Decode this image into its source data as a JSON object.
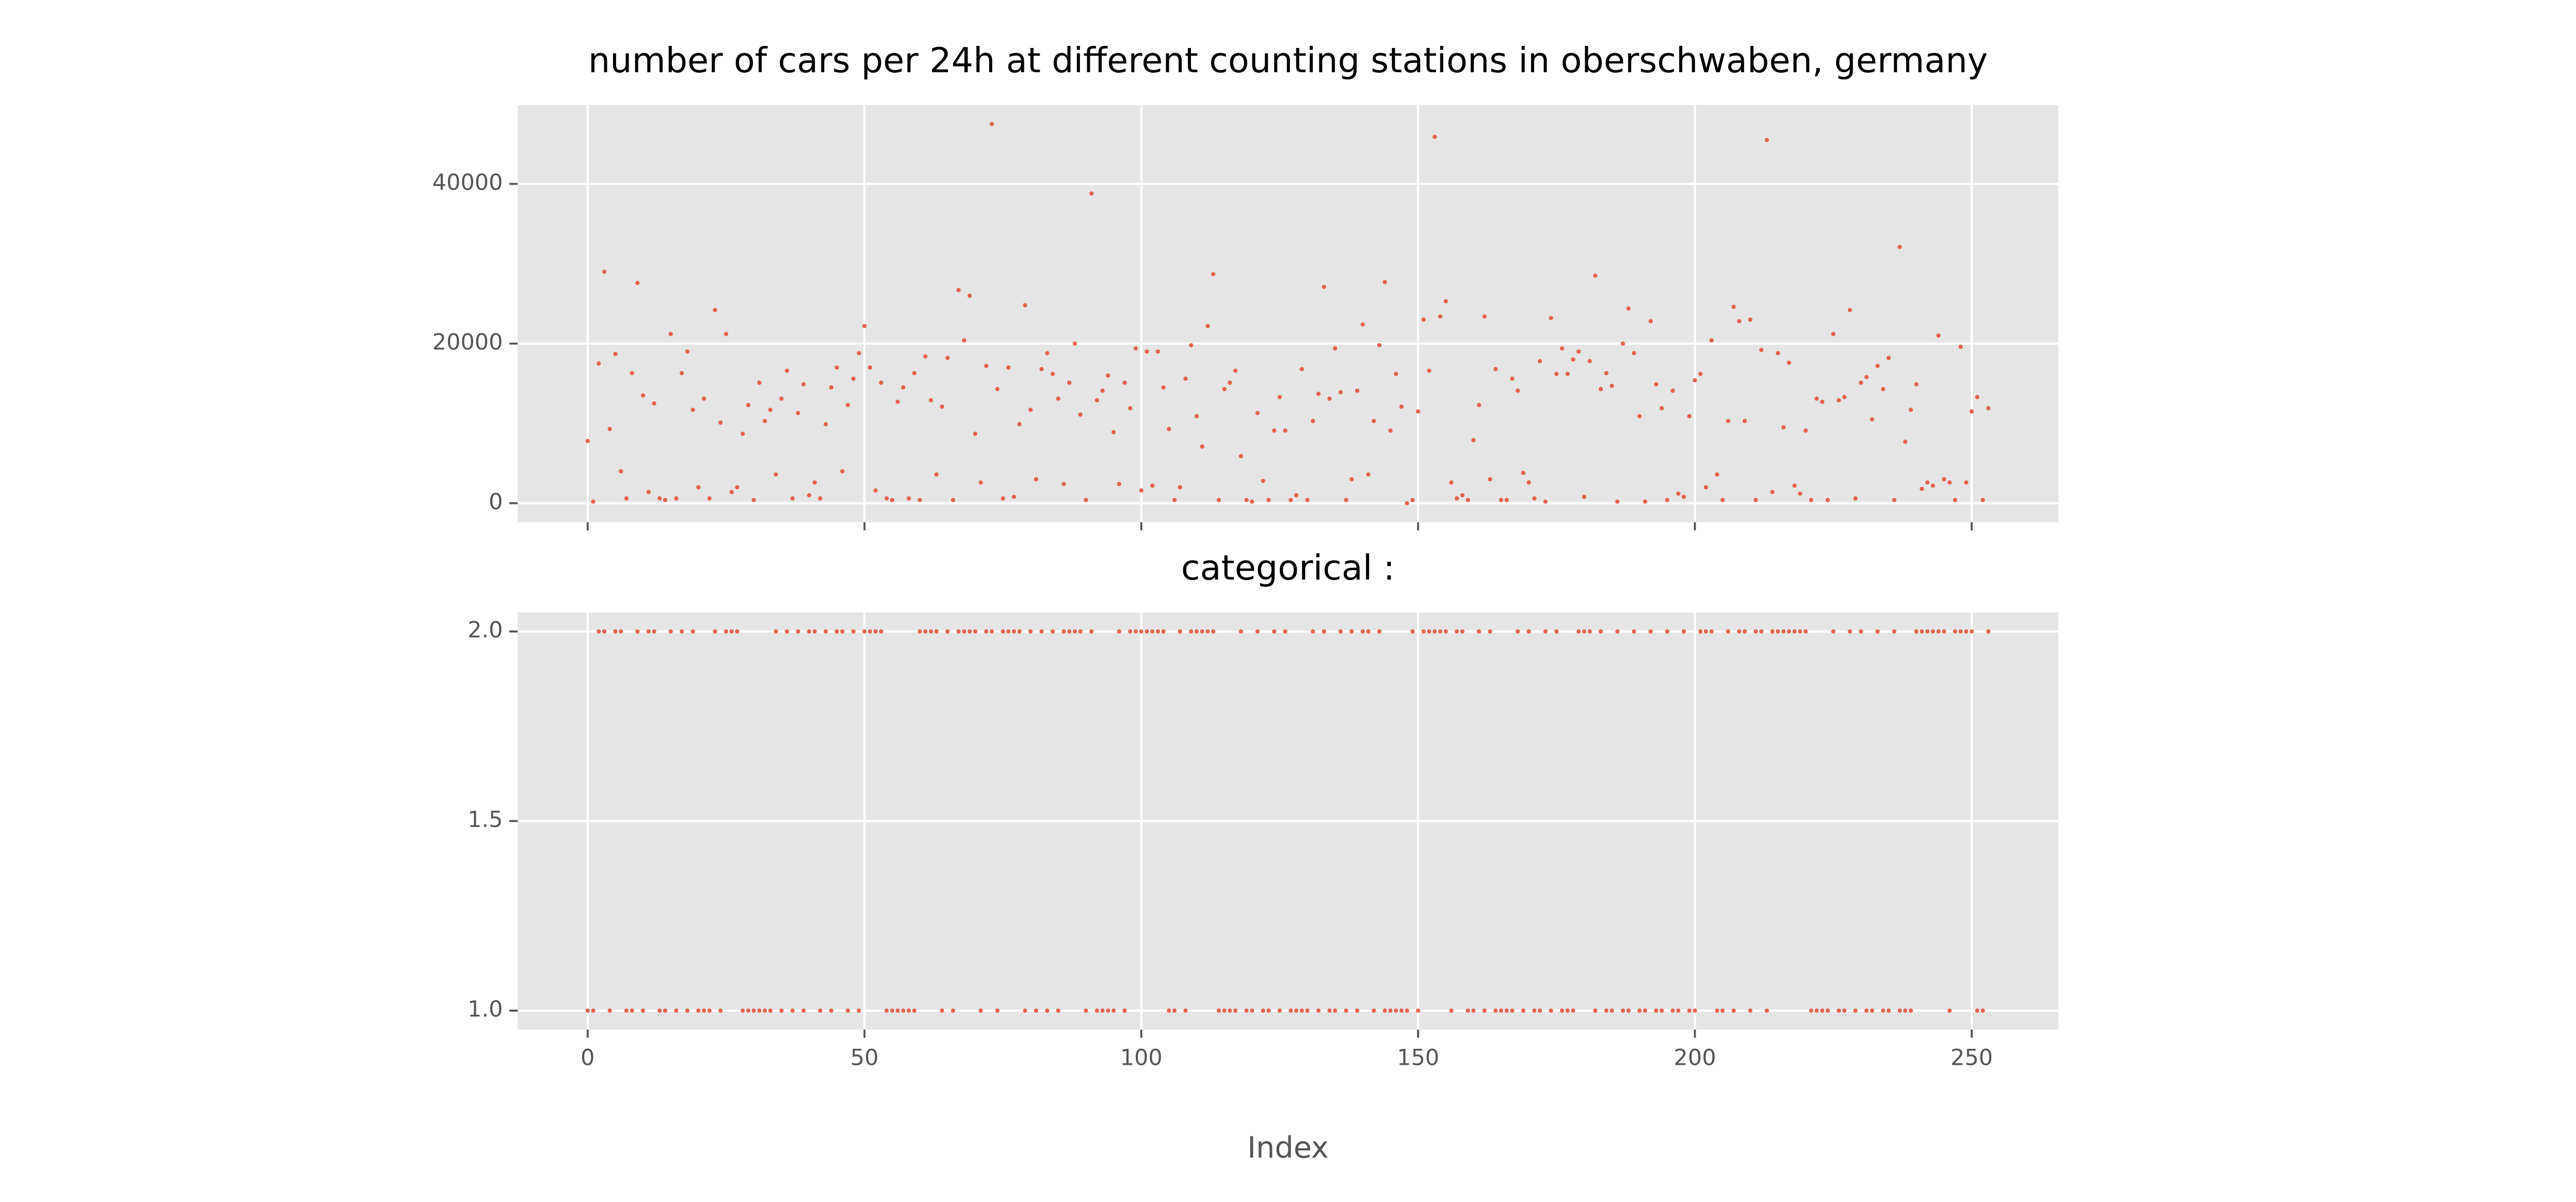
{
  "chart_data": [
    {
      "type": "scatter",
      "title": "number of cars per 24h at different counting stations in oberschwaben, germany",
      "x": [
        0,
        1,
        2,
        3,
        4,
        5,
        6,
        7,
        8,
        9,
        10,
        11,
        12,
        13,
        14,
        15,
        16,
        17,
        18,
        19,
        20,
        21,
        22,
        23,
        24,
        25,
        26,
        27,
        28,
        29,
        30,
        31,
        32,
        33,
        34,
        35,
        36,
        37,
        38,
        39,
        40,
        41,
        42,
        43,
        44,
        45,
        46,
        47,
        48,
        49,
        50,
        51,
        52,
        53,
        54,
        55,
        56,
        57,
        58,
        59,
        60,
        61,
        62,
        63,
        64,
        65,
        66,
        67,
        68,
        69,
        70,
        71,
        72,
        73,
        74,
        75,
        76,
        77,
        78,
        79,
        80,
        81,
        82,
        83,
        84,
        85,
        86,
        87,
        88,
        89,
        90,
        91,
        92,
        93,
        94,
        95,
        96,
        97,
        98,
        99,
        100,
        101,
        102,
        103,
        104,
        105,
        106,
        107,
        108,
        109,
        110,
        111,
        112,
        113,
        114,
        115,
        116,
        117,
        118,
        119,
        120,
        121,
        122,
        123,
        124,
        125,
        126,
        127,
        128,
        129,
        130,
        131,
        132,
        133,
        134,
        135,
        136,
        137,
        138,
        139,
        140,
        141,
        142,
        143,
        144,
        145,
        146,
        147,
        148,
        149,
        150,
        151,
        152,
        153,
        154,
        155,
        156,
        157,
        158,
        159,
        160,
        161,
        162,
        163,
        164,
        165,
        166,
        167,
        168,
        169,
        170,
        171,
        172,
        173,
        174,
        175,
        176,
        177,
        178,
        179,
        180,
        181,
        182,
        183,
        184,
        185,
        186,
        187,
        188,
        189,
        190,
        191,
        192,
        193,
        194,
        195,
        196,
        197,
        198,
        199,
        200,
        201,
        202,
        203,
        204,
        205,
        206,
        207,
        208,
        209,
        210,
        211,
        212,
        213,
        214,
        215,
        216,
        217,
        218,
        219,
        220,
        221,
        222,
        223,
        224,
        225,
        226,
        227,
        228,
        229,
        230,
        231,
        232,
        233,
        234,
        235,
        236,
        237,
        238,
        239,
        240,
        241,
        242,
        243,
        244,
        245,
        246,
        247,
        248,
        249,
        250,
        251,
        252,
        253
      ],
      "values": [
        7800,
        200,
        17500,
        29000,
        9300,
        18700,
        4000,
        600,
        16300,
        27600,
        13500,
        1400,
        12500,
        600,
        400,
        21200,
        600,
        16300,
        19000,
        11700,
        2000,
        13100,
        600,
        24200,
        10100,
        21200,
        1400,
        2000,
        8700,
        12300,
        400,
        15100,
        10300,
        11700,
        3600,
        13100,
        16600,
        600,
        11300,
        14900,
        1000,
        2600,
        600,
        9900,
        14500,
        17000,
        4000,
        12300,
        15600,
        18800,
        22200,
        17000,
        1600,
        15100,
        600,
        400,
        12700,
        14500,
        600,
        16300,
        400,
        18400,
        12900,
        3600,
        12100,
        18200,
        400,
        26700,
        20400,
        26000,
        8700,
        2600,
        17200,
        47500,
        14300,
        600,
        17000,
        800,
        9900,
        24800,
        11700,
        3000,
        16800,
        18800,
        16200,
        13100,
        2400,
        15100,
        20000,
        11100,
        400,
        38800,
        12900,
        14100,
        16000,
        8900,
        2400,
        15100,
        11900,
        19400,
        1600,
        19000,
        2200,
        19000,
        14500,
        9300,
        400,
        2000,
        15600,
        19800,
        10900,
        7100,
        22200,
        28700,
        400,
        14300,
        15100,
        16600,
        5900,
        400,
        200,
        11300,
        2800,
        400,
        9100,
        13300,
        9100,
        400,
        1000,
        16800,
        400,
        10300,
        13700,
        27100,
        13100,
        19400,
        13900,
        400,
        3000,
        14100,
        22400,
        3600,
        10300,
        19800,
        27700,
        9100,
        16200,
        12100,
        0,
        400,
        11500,
        23000,
        16600,
        45900,
        23400,
        25300,
        2600,
        600,
        1000,
        400,
        7900,
        12300,
        23400,
        3000,
        16800,
        400,
        400,
        15600,
        14100,
        3800,
        2600,
        600,
        17800,
        200,
        23200,
        16200,
        19400,
        16200,
        18000,
        19000,
        800,
        17800,
        28500,
        14300,
        16300,
        14700,
        200,
        20000,
        24400,
        18800,
        10900,
        200,
        22800,
        14900,
        11900,
        400,
        14100,
        1200,
        800,
        10900,
        15400,
        16200,
        2000,
        20400,
        3600,
        400,
        10300,
        24600,
        22800,
        10300,
        23000,
        400,
        19200,
        45500,
        1400,
        18800,
        9500,
        17600,
        2200,
        1200,
        9100,
        400,
        13100,
        12700,
        400,
        21200,
        12900,
        13300,
        24200,
        600,
        15100,
        15800,
        10500,
        17200,
        14300,
        18200,
        400,
        32100,
        7700,
        11700,
        14900,
        1800,
        2600,
        2200,
        21000,
        3000,
        2600,
        400,
        19600,
        2600,
        11500,
        13300,
        400,
        11900
      ],
      "color": "#e24a33",
      "xlim": [
        -12.65,
        265.65
      ],
      "xticks": [
        0,
        50,
        100,
        150,
        200,
        250
      ],
      "show_xticklabels": false,
      "ylim": [
        -2375,
        49875
      ],
      "yticks": [
        0,
        20000,
        40000
      ],
      "grid": true
    },
    {
      "type": "scatter",
      "title": "categorical :",
      "xlabel": "Index",
      "x": [
        0,
        1,
        2,
        3,
        4,
        5,
        6,
        7,
        8,
        9,
        10,
        11,
        12,
        13,
        14,
        15,
        16,
        17,
        18,
        19,
        20,
        21,
        22,
        23,
        24,
        25,
        26,
        27,
        28,
        29,
        30,
        31,
        32,
        33,
        34,
        35,
        36,
        37,
        38,
        39,
        40,
        41,
        42,
        43,
        44,
        45,
        46,
        47,
        48,
        49,
        50,
        51,
        52,
        53,
        54,
        55,
        56,
        57,
        58,
        59,
        60,
        61,
        62,
        63,
        64,
        65,
        66,
        67,
        68,
        69,
        70,
        71,
        72,
        73,
        74,
        75,
        76,
        77,
        78,
        79,
        80,
        81,
        82,
        83,
        84,
        85,
        86,
        87,
        88,
        89,
        90,
        91,
        92,
        93,
        94,
        95,
        96,
        97,
        98,
        99,
        100,
        101,
        102,
        103,
        104,
        105,
        106,
        107,
        108,
        109,
        110,
        111,
        112,
        113,
        114,
        115,
        116,
        117,
        118,
        119,
        120,
        121,
        122,
        123,
        124,
        125,
        126,
        127,
        128,
        129,
        130,
        131,
        132,
        133,
        134,
        135,
        136,
        137,
        138,
        139,
        140,
        141,
        142,
        143,
        144,
        145,
        146,
        147,
        148,
        149,
        150,
        151,
        152,
        153,
        154,
        155,
        156,
        157,
        158,
        159,
        160,
        161,
        162,
        163,
        164,
        165,
        166,
        167,
        168,
        169,
        170,
        171,
        172,
        173,
        174,
        175,
        176,
        177,
        178,
        179,
        180,
        181,
        182,
        183,
        184,
        185,
        186,
        187,
        188,
        189,
        190,
        191,
        192,
        193,
        194,
        195,
        196,
        197,
        198,
        199,
        200,
        201,
        202,
        203,
        204,
        205,
        206,
        207,
        208,
        209,
        210,
        211,
        212,
        213,
        214,
        215,
        216,
        217,
        218,
        219,
        220,
        221,
        222,
        223,
        224,
        225,
        226,
        227,
        228,
        229,
        230,
        231,
        232,
        233,
        234,
        235,
        236,
        237,
        238,
        239,
        240,
        241,
        242,
        243,
        244,
        245,
        246,
        247,
        248,
        249,
        250,
        251,
        252,
        253
      ],
      "values": [
        1,
        1,
        2,
        2,
        1,
        2,
        2,
        1,
        1,
        2,
        1,
        2,
        2,
        1,
        1,
        2,
        1,
        2,
        1,
        2,
        1,
        1,
        1,
        2,
        1,
        2,
        2,
        2,
        1,
        1,
        1,
        1,
        1,
        1,
        2,
        1,
        2,
        1,
        2,
        1,
        2,
        2,
        1,
        2,
        1,
        2,
        2,
        1,
        2,
        1,
        2,
        2,
        2,
        2,
        1,
        1,
        1,
        1,
        1,
        1,
        2,
        2,
        2,
        2,
        1,
        2,
        1,
        2,
        2,
        2,
        2,
        1,
        2,
        2,
        1,
        2,
        2,
        2,
        2,
        1,
        2,
        1,
        2,
        1,
        2,
        1,
        2,
        2,
        2,
        2,
        1,
        2,
        1,
        1,
        1,
        1,
        2,
        1,
        2,
        2,
        2,
        2,
        2,
        2,
        2,
        1,
        1,
        2,
        1,
        2,
        2,
        2,
        2,
        2,
        1,
        1,
        1,
        1,
        2,
        1,
        1,
        2,
        1,
        1,
        2,
        1,
        2,
        1,
        1,
        1,
        1,
        2,
        1,
        2,
        1,
        1,
        2,
        1,
        2,
        1,
        2,
        2,
        1,
        2,
        1,
        1,
        1,
        1,
        1,
        2,
        1,
        2,
        2,
        2,
        2,
        2,
        1,
        2,
        2,
        1,
        1,
        2,
        1,
        2,
        1,
        1,
        1,
        1,
        2,
        1,
        2,
        1,
        1,
        2,
        1,
        2,
        1,
        1,
        1,
        2,
        2,
        2,
        1,
        2,
        1,
        1,
        2,
        1,
        1,
        2,
        1,
        1,
        2,
        1,
        1,
        2,
        1,
        1,
        2,
        1,
        1,
        2,
        2,
        2,
        1,
        1,
        2,
        1,
        2,
        2,
        1,
        2,
        2,
        1,
        2,
        2,
        2,
        2,
        2,
        2,
        2,
        1,
        1,
        1,
        1,
        2,
        1,
        1,
        2,
        1,
        2,
        1,
        1,
        2,
        1,
        1,
        2,
        1,
        1,
        1,
        2,
        2,
        2,
        2,
        2,
        2,
        1,
        2,
        2,
        2,
        2,
        1,
        1,
        2
      ],
      "color": "#e24a33",
      "xlim": [
        -12.65,
        265.65
      ],
      "xticks": [
        0,
        50,
        100,
        150,
        200,
        250
      ],
      "show_xticklabels": true,
      "ylim": [
        0.95,
        2.05
      ],
      "yticks": [
        {
          "value": 1,
          "label": "1.0"
        },
        1.5,
        {
          "value": 2,
          "label": "2.0"
        }
      ],
      "grid": true
    }
  ]
}
